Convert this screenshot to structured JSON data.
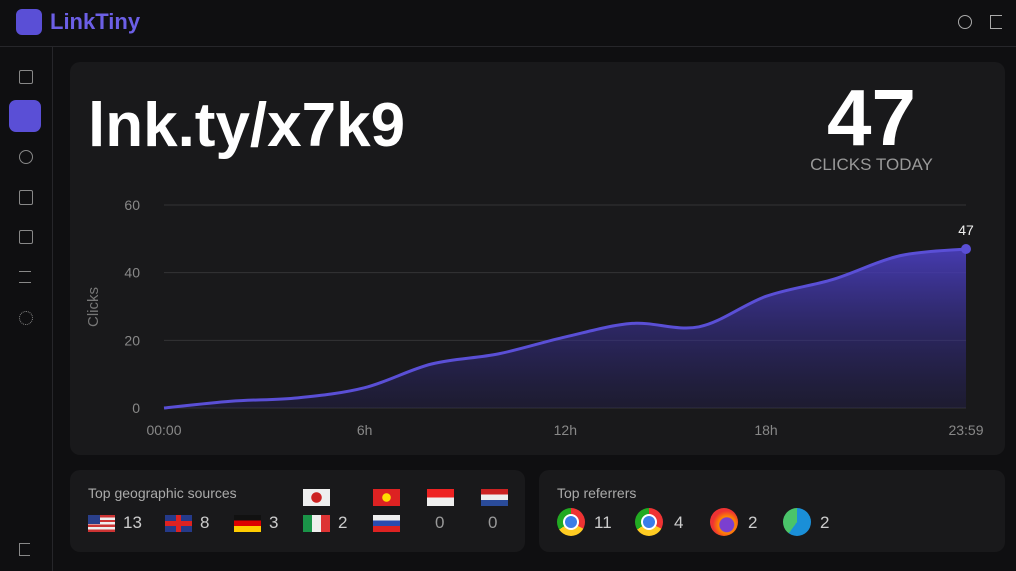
{
  "header": {
    "brand": "LinkTiny"
  },
  "link": "lnk.ty/x7k9",
  "clicks_today": {
    "value": 47,
    "label": "CLICKS TODAY"
  },
  "chart_data": {
    "type": "area",
    "x": [
      0,
      2,
      4,
      6,
      8,
      10,
      12,
      14,
      16,
      18,
      20,
      22,
      23.98
    ],
    "values": [
      0,
      2,
      3,
      6,
      13,
      16,
      21,
      25,
      24,
      33,
      38,
      45,
      47
    ],
    "color": "#5a4fd6",
    "xlim": [
      0,
      23.98
    ],
    "xticks": [
      {
        "value": 0,
        "label": "00:00"
      },
      {
        "value": 6,
        "label": "6h"
      },
      {
        "value": 12,
        "label": "12h"
      },
      {
        "value": 18,
        "label": "18h"
      },
      {
        "value": 23.98,
        "label": "23:59"
      }
    ],
    "ylim": [
      0,
      60
    ],
    "yticks": [
      0,
      20,
      40,
      60
    ],
    "y_label": "Clicks",
    "grid": true
  },
  "geo": {
    "title": "Top geographic sources",
    "counts": [
      13,
      8,
      3,
      2,
      0,
      0
    ]
  },
  "referrers": {
    "title": "Top referrers",
    "counts": [
      11,
      4,
      2,
      2
    ]
  }
}
